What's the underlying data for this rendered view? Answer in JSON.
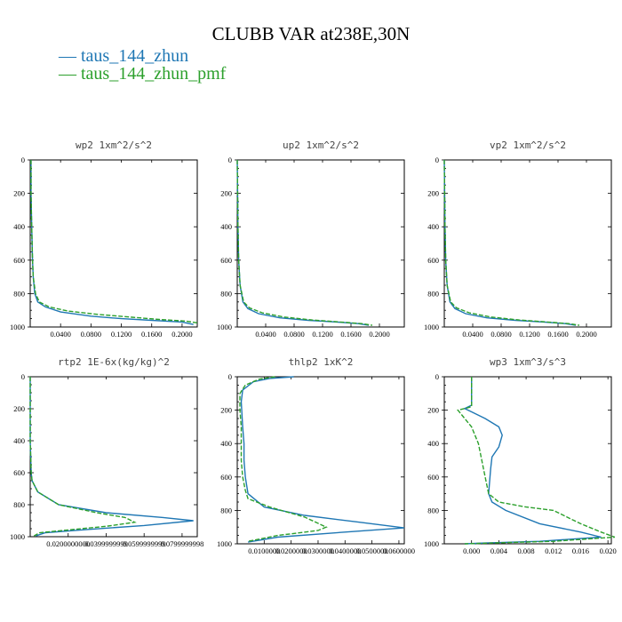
{
  "title": "CLUBB VAR at238E,30N",
  "legend": [
    {
      "label": "taus_144_zhun",
      "color": "#1f77b4"
    },
    {
      "label": "taus_144_zhun_pmf",
      "color": "#2ca02c"
    }
  ],
  "chart_data": [
    {
      "type": "line",
      "title": "wp2   1xm^2/s^2",
      "xlim": [
        0,
        0.22
      ],
      "ylim": [
        1000,
        0
      ],
      "yticks": [
        0,
        200,
        400,
        600,
        800,
        1000
      ],
      "xticks": [
        0.04,
        0.08,
        0.12,
        0.16,
        0.2
      ],
      "xtick_labels": [
        "0.0400",
        "0.0800",
        "0.1200",
        "0.1600",
        "0.2000"
      ],
      "series": [
        {
          "name": "taus_144_zhun",
          "color": "#1f77b4",
          "x": [
            0.001,
            0.001,
            0.002,
            0.003,
            0.004,
            0.006,
            0.01,
            0.02,
            0.04,
            0.08,
            0.12,
            0.16,
            0.2,
            0.215
          ],
          "y": [
            0,
            200,
            400,
            600,
            700,
            800,
            850,
            880,
            910,
            935,
            950,
            960,
            970,
            985
          ]
        },
        {
          "name": "taus_144_zhun_pmf",
          "color": "#2ca02c",
          "x": [
            0.001,
            0.001,
            0.002,
            0.003,
            0.004,
            0.007,
            0.012,
            0.025,
            0.05,
            0.09,
            0.13,
            0.17,
            0.205,
            0.22
          ],
          "y": [
            0,
            200,
            400,
            600,
            700,
            800,
            850,
            880,
            905,
            925,
            940,
            955,
            965,
            975
          ]
        }
      ]
    },
    {
      "type": "line",
      "title": "up2   1xm^2/s^2",
      "xlim": [
        0,
        0.235
      ],
      "ylim": [
        1000,
        0
      ],
      "yticks": [
        0,
        200,
        400,
        600,
        800,
        1000
      ],
      "xticks": [
        0.04,
        0.08,
        0.12,
        0.16,
        0.2
      ],
      "xtick_labels": [
        "0.0400",
        "0.0800",
        "0.1200",
        "0.1600",
        "0.2000"
      ],
      "series": [
        {
          "name": "taus_144_zhun",
          "color": "#1f77b4",
          "x": [
            0.0,
            0.0005,
            0.001,
            0.002,
            0.004,
            0.008,
            0.015,
            0.03,
            0.06,
            0.1,
            0.14,
            0.17,
            0.185
          ],
          "y": [
            0,
            200,
            400,
            600,
            750,
            850,
            890,
            920,
            945,
            960,
            970,
            980,
            990
          ]
        },
        {
          "name": "taus_144_zhun_pmf",
          "color": "#2ca02c",
          "x": [
            0.0,
            0.0005,
            0.001,
            0.002,
            0.004,
            0.009,
            0.017,
            0.035,
            0.065,
            0.105,
            0.145,
            0.175,
            0.19
          ],
          "y": [
            0,
            200,
            400,
            600,
            750,
            850,
            885,
            915,
            940,
            958,
            970,
            980,
            990
          ]
        }
      ]
    },
    {
      "type": "line",
      "title": "vp2   1xm^2/s^2",
      "xlim": [
        0,
        0.235
      ],
      "ylim": [
        1000,
        0
      ],
      "yticks": [
        0,
        200,
        400,
        600,
        800,
        1000
      ],
      "xticks": [
        0.04,
        0.08,
        0.12,
        0.16,
        0.2
      ],
      "xtick_labels": [
        "0.0400",
        "0.0800",
        "0.1200",
        "0.1600",
        "0.2000"
      ],
      "series": [
        {
          "name": "taus_144_zhun",
          "color": "#1f77b4",
          "x": [
            0.0,
            0.0005,
            0.001,
            0.002,
            0.004,
            0.008,
            0.015,
            0.03,
            0.06,
            0.1,
            0.14,
            0.17,
            0.185
          ],
          "y": [
            0,
            200,
            400,
            600,
            750,
            850,
            890,
            920,
            945,
            960,
            970,
            980,
            990
          ]
        },
        {
          "name": "taus_144_zhun_pmf",
          "color": "#2ca02c",
          "x": [
            0.0,
            0.0005,
            0.001,
            0.002,
            0.004,
            0.009,
            0.017,
            0.035,
            0.065,
            0.105,
            0.145,
            0.175,
            0.19
          ],
          "y": [
            0,
            200,
            400,
            600,
            750,
            850,
            885,
            915,
            940,
            958,
            970,
            980,
            990
          ]
        }
      ]
    },
    {
      "type": "line",
      "title": "rtp2   1E-6x(kg/kg)^2",
      "xlim": [
        0,
        0.088
      ],
      "ylim": [
        1000,
        0
      ],
      "yticks": [
        0,
        200,
        400,
        600,
        800,
        1000
      ],
      "xticks": [
        0.02,
        0.04,
        0.06,
        0.08
      ],
      "xtick_labels": [
        "0.0200000000",
        "0.0399999999",
        "0.0599999999",
        "0.0799999998"
      ],
      "series": [
        {
          "name": "taus_144_zhun",
          "color": "#1f77b4",
          "x": [
            0.0,
            0.0,
            0.0005,
            0.001,
            0.004,
            0.015,
            0.04,
            0.07,
            0.086,
            0.06,
            0.03,
            0.008,
            0.003
          ],
          "y": [
            0,
            400,
            600,
            650,
            720,
            800,
            850,
            880,
            900,
            930,
            955,
            975,
            995
          ]
        },
        {
          "name": "taus_144_zhun_pmf",
          "color": "#2ca02c",
          "x": [
            0.0,
            0.0,
            0.0005,
            0.001,
            0.004,
            0.015,
            0.035,
            0.05,
            0.055,
            0.04,
            0.02,
            0.005,
            0.002
          ],
          "y": [
            0,
            400,
            600,
            650,
            720,
            800,
            850,
            880,
            910,
            935,
            958,
            975,
            995
          ]
        }
      ]
    },
    {
      "type": "line",
      "title": "thlp2   1xK^2",
      "xlim": [
        0,
        0.062
      ],
      "ylim": [
        1000,
        0
      ],
      "yticks": [
        0,
        200,
        400,
        600,
        800,
        1000
      ],
      "xticks": [
        0.01,
        0.02,
        0.03,
        0.04,
        0.05,
        0.06
      ],
      "xtick_labels": [
        "0.0100000",
        "0.0200000",
        "0.0300000",
        "0.0400000",
        "0.0500000",
        "0.0600000"
      ],
      "series": [
        {
          "name": "taus_144_zhun",
          "color": "#1f77b4",
          "x": [
            0.021,
            0.012,
            0.006,
            0.002,
            0.0015,
            0.002,
            0.0025,
            0.0025,
            0.003,
            0.004,
            0.01,
            0.025,
            0.045,
            0.062,
            0.04,
            0.015,
            0.004
          ],
          "y": [
            0,
            10,
            30,
            80,
            150,
            300,
            400,
            500,
            600,
            700,
            780,
            830,
            870,
            905,
            930,
            960,
            990
          ]
        },
        {
          "name": "taus_144_zhun_pmf",
          "color": "#2ca02c",
          "x": [
            0.014,
            0.008,
            0.003,
            0.001,
            0.001,
            0.0015,
            0.0015,
            0.002,
            0.003,
            0.004,
            0.012,
            0.025,
            0.033,
            0.03,
            0.015,
            0.004
          ],
          "y": [
            0,
            15,
            50,
            100,
            200,
            300,
            500,
            600,
            680,
            730,
            780,
            840,
            900,
            920,
            950,
            985
          ]
        }
      ]
    },
    {
      "type": "line",
      "title": "wp3   1xm^3/s^3",
      "xlim": [
        -0.004,
        0.0205
      ],
      "ylim": [
        1000,
        0
      ],
      "yticks": [
        0,
        200,
        400,
        600,
        800,
        1000
      ],
      "xticks": [
        0.0,
        0.004,
        0.008,
        0.012,
        0.016,
        0.02
      ],
      "xtick_labels": [
        "0.000",
        "0.004",
        "0.008",
        "0.012",
        "0.016",
        "0.020"
      ],
      "series": [
        {
          "name": "taus_144_zhun",
          "color": "#1f77b4",
          "x": [
            0.0,
            0.0,
            0.0,
            -0.001,
            0.0,
            0.002,
            0.004,
            0.0045,
            0.004,
            0.003,
            0.0028,
            0.0025,
            0.003,
            0.005,
            0.01,
            0.016,
            0.019,
            0.01,
            0.002,
            -0.001
          ],
          "y": [
            0,
            140,
            170,
            190,
            210,
            250,
            300,
            350,
            420,
            480,
            550,
            700,
            750,
            800,
            880,
            930,
            960,
            985,
            995,
            1000
          ]
        },
        {
          "name": "taus_144_zhun_pmf",
          "color": "#2ca02c",
          "x": [
            0.0,
            0.0,
            0.0,
            -0.002,
            -0.001,
            0.0,
            0.001,
            0.0015,
            0.002,
            0.0025,
            0.004,
            0.008,
            0.012,
            0.016,
            0.019,
            0.021,
            0.012,
            0.003,
            -0.001
          ],
          "y": [
            0,
            140,
            180,
            200,
            250,
            300,
            400,
            500,
            600,
            700,
            750,
            780,
            800,
            880,
            930,
            960,
            985,
            995,
            1000
          ]
        }
      ]
    }
  ]
}
